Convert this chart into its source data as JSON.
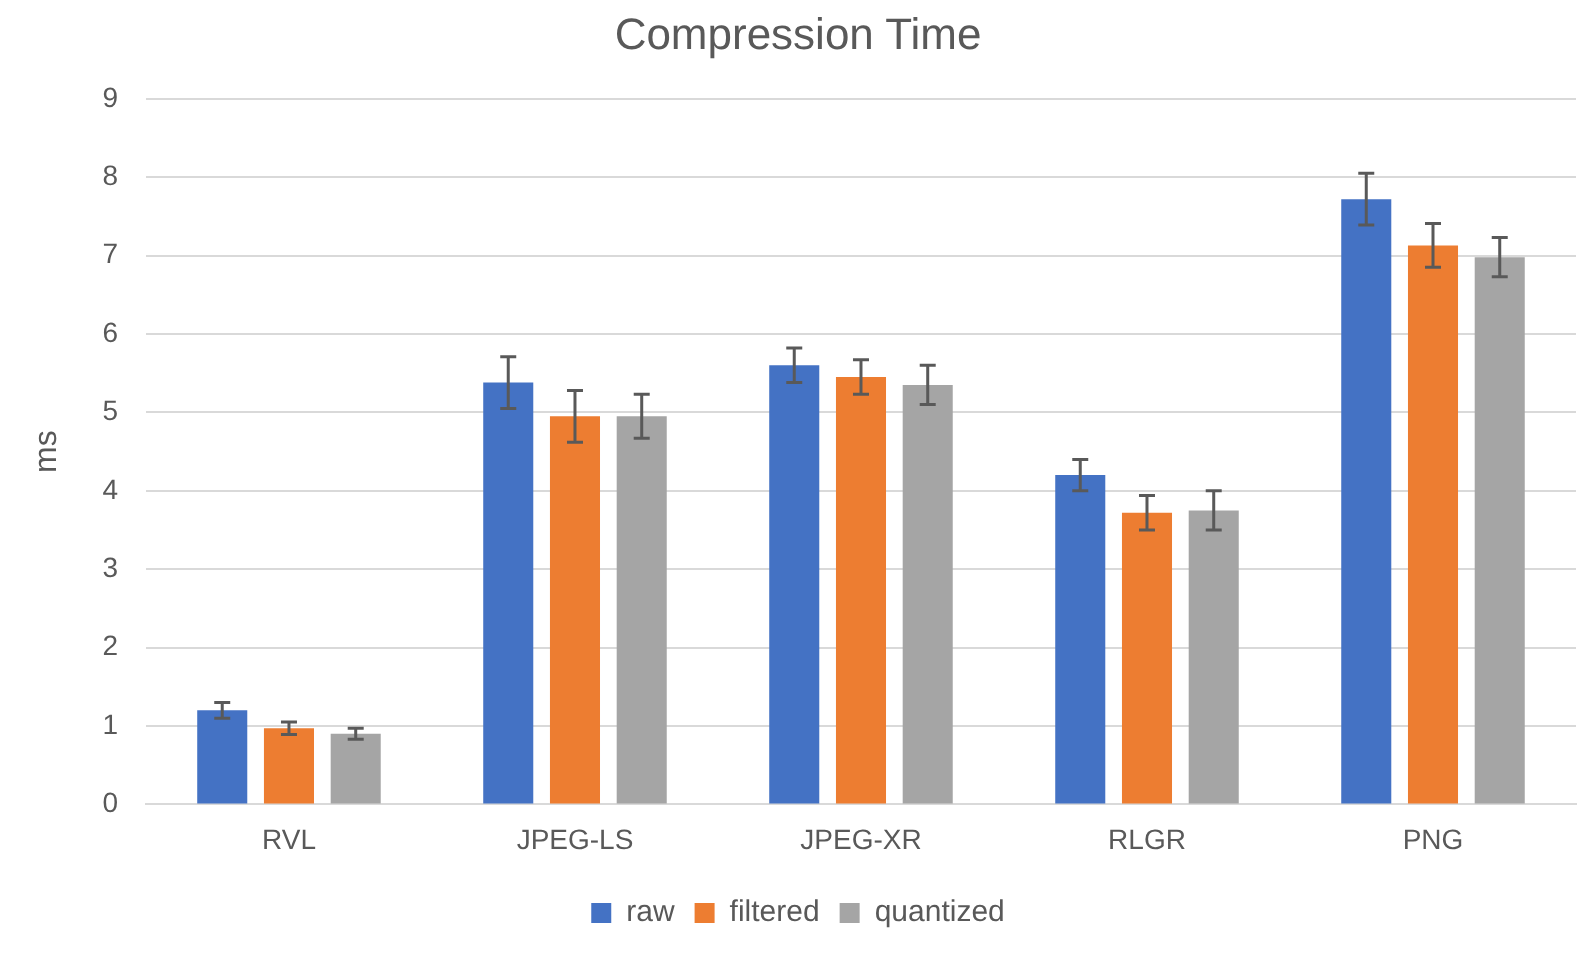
{
  "chart_data": {
    "type": "bar",
    "title": "Compression Time",
    "ylabel": "ms",
    "categories": [
      "RVL",
      "JPEG-LS",
      "JPEG-XR",
      "RLGR",
      "PNG"
    ],
    "series": [
      {
        "name": "raw",
        "color": "#4472c4",
        "values": [
          1.2,
          5.38,
          5.6,
          4.2,
          7.72
        ],
        "errors": [
          0.1,
          0.33,
          0.22,
          0.2,
          0.33
        ]
      },
      {
        "name": "filtered",
        "color": "#ed7d31",
        "values": [
          0.97,
          4.95,
          5.45,
          3.72,
          7.13
        ],
        "errors": [
          0.08,
          0.33,
          0.22,
          0.22,
          0.28
        ]
      },
      {
        "name": "quantized",
        "color": "#a5a5a5",
        "values": [
          0.9,
          4.95,
          5.35,
          3.75,
          6.98
        ],
        "errors": [
          0.07,
          0.28,
          0.25,
          0.25,
          0.25
        ]
      }
    ],
    "ylim": [
      0,
      9
    ],
    "yticks": [
      0,
      1,
      2,
      3,
      4,
      5,
      6,
      7,
      8,
      9
    ],
    "grid": "y",
    "legend": "bottom"
  }
}
